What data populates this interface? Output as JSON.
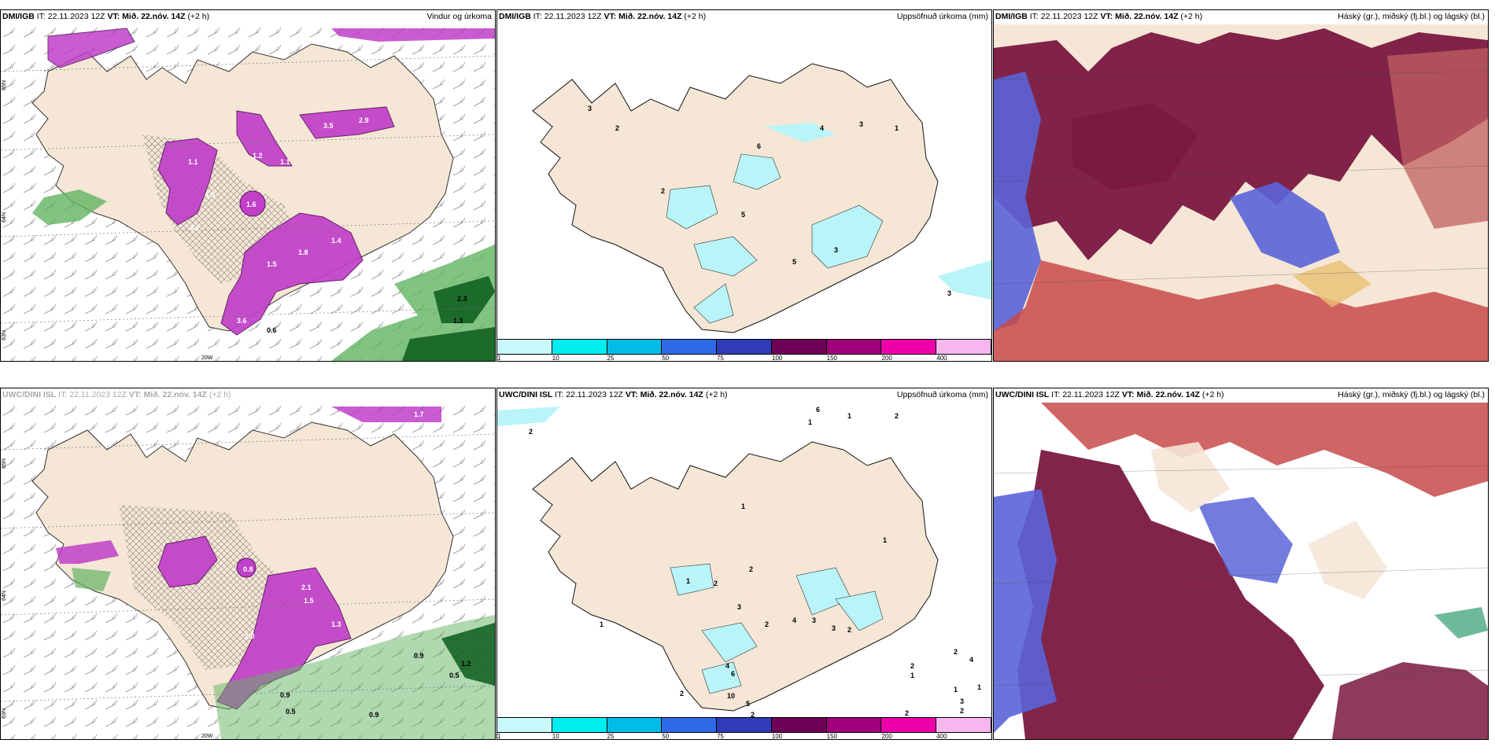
{
  "panels": [
    {
      "id": "p1",
      "model": "DMI/IGB",
      "it_label": "IT:",
      "it_value": "22.11.2023 12Z",
      "vt_label": "VT:",
      "vt_value": "Mið. 22.nóv. 14Z",
      "offset": "(+2 h)",
      "product": "Vindur og úrkoma"
    },
    {
      "id": "p2",
      "model": "DMI/IGB",
      "it_label": "IT:",
      "it_value": "22.11.2023 12Z",
      "vt_label": "VT:",
      "vt_value": "Mið. 22.nóv. 14Z",
      "offset": "(+2 h)",
      "product": "Uppsöfnuð úrkoma (mm)"
    },
    {
      "id": "p3",
      "model": "DMI/IGB",
      "it_label": "IT:",
      "it_value": "22.11.2023 12Z",
      "vt_label": "VT:",
      "vt_value": "Mið. 22.nóv. 14Z",
      "offset": "(+2 h)",
      "product": "Háský (gr.), miðský (fj.bl.) og lágský (bl.)"
    },
    {
      "id": "p4",
      "model": "UWC/DINI ISL",
      "it_label": "IT:",
      "it_value": "22.11.2023 12Z",
      "vt_label": "VT:",
      "vt_value": "Mið. 22.nóv. 14Z",
      "offset": "(+2 h)",
      "product": ""
    },
    {
      "id": "p5",
      "model": "UWC/DINI ISL",
      "it_label": "IT:",
      "it_value": "22.11.2023 12Z",
      "vt_label": "VT:",
      "vt_value": "Mið. 22.nóv. 14Z",
      "offset": "(+2 h)",
      "product": "Uppsöfnuð úrkoma (mm)"
    },
    {
      "id": "p6",
      "model": "UWC/DINI ISL",
      "it_label": "IT:",
      "it_value": "22.11.2023 12Z",
      "vt_label": "VT:",
      "vt_value": "Mið. 22.nóv. 14Z",
      "offset": "(+2 h)",
      "product": "Háský (gr.), miðský (fj.bl.) og lágský (bl.)"
    }
  ],
  "colorbar": {
    "labels": [
      "1",
      "10",
      "25",
      "50",
      "75",
      "100",
      "150",
      "200",
      "400"
    ],
    "colors": [
      "#c8f8fa",
      "#00eef0",
      "#00bde8",
      "#2f6ae6",
      "#2f3bb8",
      "#6e0055",
      "#a0007a",
      "#ee00a8",
      "#f7b6ee"
    ]
  },
  "axis_labels": {
    "lat_a": "65N",
    "lat_b": "64N",
    "lat_c": "63N",
    "lon": "20W"
  },
  "colors": {
    "land": "#f5e6d6",
    "precip_magenta": "#c040c8",
    "precip_light": "#e08ce6",
    "precip_green": "#62b462",
    "precip_green_dark": "#0c5c1c",
    "accum_cyan": "#b8f4f8",
    "cloud_high": "#7a1840",
    "cloud_mid": "#5a64d8",
    "cloud_low": "#c84a4a"
  },
  "p1_values": [
    "3.5",
    "2.9",
    "1.1",
    "1.2",
    "1.1",
    "1.5",
    "1.6",
    "3.2",
    "1.4",
    "1.5",
    "1.8",
    "3.6",
    "0.6",
    "2.3",
    "1.3"
  ],
  "p4_values": [
    "1.7",
    "2.1",
    "1.5",
    "1.3",
    "1.0",
    "0.8",
    "0.9",
    "0.5",
    "1.2",
    "0.9",
    "0.5",
    "0.9"
  ],
  "p2_values": [
    "3",
    "2",
    "2",
    "6",
    "4",
    "3",
    "1",
    "5",
    "5",
    "3",
    "3"
  ],
  "p5_values": [
    "2",
    "6",
    "1",
    "2",
    "1",
    "1",
    "1",
    "2",
    "1",
    "2",
    "3",
    "4",
    "2",
    "3",
    "3",
    "2",
    "4",
    "6",
    "10",
    "5",
    "2",
    "2",
    "2",
    "4",
    "2",
    "1",
    "1",
    "1",
    "3",
    "2",
    "2",
    "1"
  ]
}
